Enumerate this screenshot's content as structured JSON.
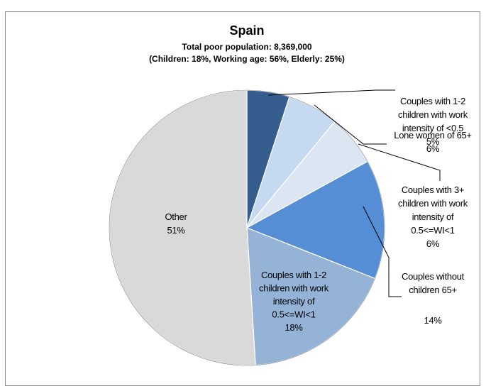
{
  "chart_data": {
    "type": "pie",
    "title": "Spain",
    "subtitle_lines": [
      "Total poor population: 8,369,000",
      "(Children: 18%, Working age: 56%, Elderly: 25%)"
    ],
    "slices": [
      {
        "label_lines": [
          "Couples with 1-2",
          "children with work",
          "intensity of <0.5"
        ],
        "pct_label": "5%",
        "value": 5,
        "color": "#355E8F"
      },
      {
        "label_lines": [
          "Lone women of 65+"
        ],
        "pct_label": "6%",
        "value": 6,
        "color": "#C5D9F1"
      },
      {
        "label_lines": [
          "Couples with 3+",
          "children with work",
          "intensity of",
          "0.5<=WI<1"
        ],
        "pct_label": "6%",
        "value": 6,
        "color": "#DCE6F2"
      },
      {
        "label_lines": [
          "Couples without",
          "children 65+"
        ],
        "pct_label": "14%",
        "value": 14,
        "color": "#558ED5"
      },
      {
        "label_lines": [
          "Couples with 1-2",
          "children with work",
          "intensity of",
          "0.5<=WI<1"
        ],
        "pct_label": "18%",
        "value": 18,
        "color": "#95B3D7"
      },
      {
        "label_lines": [
          "Other"
        ],
        "pct_label": "51%",
        "value": 51,
        "color": "#D9D9D9"
      }
    ]
  }
}
